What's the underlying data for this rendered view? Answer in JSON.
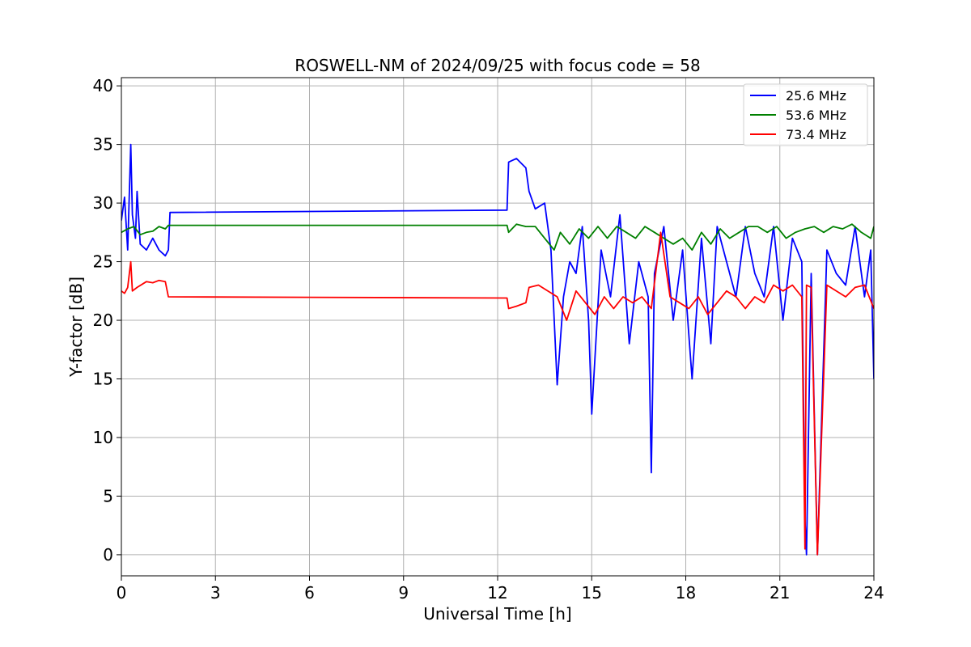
{
  "chart_data": {
    "type": "line",
    "title": "ROSWELL-NM of 2024/09/25 with focus code = 58",
    "xlabel": "Universal Time [h]",
    "ylabel": "Y-factor [dB]",
    "xlim": [
      0,
      24
    ],
    "ylim": [
      -1.8,
      40.7
    ],
    "xticks": [
      "0",
      "3",
      "6",
      "9",
      "12",
      "15",
      "18",
      "21",
      "24"
    ],
    "yticks": [
      "0",
      "5",
      "10",
      "15",
      "20",
      "25",
      "30",
      "35",
      "40"
    ],
    "grid": true,
    "legend_position": "top-right",
    "series": [
      {
        "name": "  25.6 MHz",
        "color": "#0000ff",
        "x": [
          0,
          0.1,
          0.2,
          0.3,
          0.35,
          0.45,
          0.5,
          0.6,
          0.8,
          1.0,
          1.2,
          1.4,
          1.5,
          1.55,
          12.3,
          12.35,
          12.6,
          12.9,
          13.0,
          13.2,
          13.5,
          13.7,
          13.9,
          14.1,
          14.3,
          14.5,
          14.7,
          14.9,
          15.0,
          15.3,
          15.6,
          15.9,
          16.2,
          16.5,
          16.8,
          16.9,
          17.0,
          17.3,
          17.6,
          17.9,
          18.2,
          18.5,
          18.8,
          19.0,
          19.3,
          19.6,
          19.9,
          20.2,
          20.5,
          20.8,
          21.1,
          21.4,
          21.7,
          21.8,
          21.85,
          22.0,
          22.2,
          22.5,
          22.8,
          23.1,
          23.4,
          23.7,
          23.9,
          24.0
        ],
        "y": [
          28.5,
          30.5,
          26.0,
          35.0,
          29.0,
          27.0,
          31.0,
          26.5,
          26.0,
          27.0,
          26.0,
          25.5,
          26.0,
          29.2,
          29.4,
          33.5,
          33.8,
          33.0,
          31.0,
          29.5,
          30.0,
          26.0,
          14.5,
          22.0,
          25.0,
          24.0,
          28.0,
          20.0,
          12.0,
          26.0,
          22.0,
          29.0,
          18.0,
          25.0,
          22.0,
          7.0,
          24.0,
          28.0,
          20.0,
          26.0,
          15.0,
          27.0,
          18.0,
          28.0,
          25.0,
          22.0,
          28.0,
          24.0,
          22.0,
          28.0,
          20.0,
          27.0,
          25.0,
          3.0,
          0.0,
          24.0,
          0.0,
          26.0,
          24.0,
          23.0,
          28.0,
          22.0,
          26.0,
          15.0
        ]
      },
      {
        "name": "  53.6 MHz",
        "color": "#008000",
        "x": [
          0,
          0.2,
          0.4,
          0.6,
          0.8,
          1.0,
          1.2,
          1.4,
          1.5,
          12.3,
          12.35,
          12.6,
          12.9,
          13.2,
          13.5,
          13.8,
          14.0,
          14.3,
          14.6,
          14.9,
          15.2,
          15.5,
          15.8,
          16.1,
          16.4,
          16.7,
          17.0,
          17.3,
          17.6,
          17.9,
          18.2,
          18.5,
          18.8,
          19.1,
          19.4,
          19.7,
          20.0,
          20.3,
          20.6,
          20.9,
          21.2,
          21.5,
          21.8,
          22.1,
          22.4,
          22.7,
          23.0,
          23.3,
          23.6,
          23.9,
          24.0
        ],
        "y": [
          27.5,
          27.8,
          28.0,
          27.3,
          27.5,
          27.6,
          28.0,
          27.8,
          28.1,
          28.1,
          27.5,
          28.2,
          28.0,
          28.0,
          27.0,
          26.0,
          27.5,
          26.5,
          27.8,
          27.0,
          28.0,
          27.0,
          28.0,
          27.5,
          27.0,
          28.0,
          27.5,
          27.0,
          26.5,
          27.0,
          26.0,
          27.5,
          26.5,
          27.8,
          27.0,
          27.5,
          28.0,
          28.0,
          27.5,
          28.0,
          27.0,
          27.5,
          27.8,
          28.0,
          27.5,
          28.0,
          27.8,
          28.2,
          27.5,
          27.0,
          28.0
        ]
      },
      {
        "name": "  73.4 MHz",
        "color": "#ff0000",
        "x": [
          0,
          0.1,
          0.2,
          0.3,
          0.35,
          0.5,
          0.8,
          1.0,
          1.2,
          1.4,
          1.5,
          12.3,
          12.35,
          12.6,
          12.9,
          13.0,
          13.3,
          13.6,
          13.9,
          14.2,
          14.5,
          14.8,
          15.1,
          15.4,
          15.7,
          16.0,
          16.3,
          16.6,
          16.9,
          17.2,
          17.5,
          17.8,
          18.1,
          18.4,
          18.7,
          19.0,
          19.3,
          19.6,
          19.9,
          20.2,
          20.5,
          20.8,
          21.1,
          21.4,
          21.7,
          21.8,
          21.85,
          22.0,
          22.2,
          22.5,
          22.8,
          23.1,
          23.4,
          23.7,
          24.0
        ],
        "y": [
          22.5,
          22.3,
          22.8,
          25.0,
          22.5,
          22.8,
          23.3,
          23.2,
          23.4,
          23.3,
          22.0,
          21.9,
          21.0,
          21.2,
          21.5,
          22.8,
          23.0,
          22.5,
          22.0,
          20.0,
          22.5,
          21.5,
          20.5,
          22.0,
          21.0,
          22.0,
          21.5,
          22.0,
          21.0,
          27.5,
          22.0,
          21.5,
          21.0,
          22.0,
          20.5,
          21.5,
          22.5,
          22.0,
          21.0,
          22.0,
          21.5,
          23.0,
          22.5,
          23.0,
          22.0,
          0.5,
          23.0,
          22.8,
          0.0,
          23.0,
          22.5,
          22.0,
          22.8,
          23.0,
          21.0
        ]
      }
    ]
  }
}
